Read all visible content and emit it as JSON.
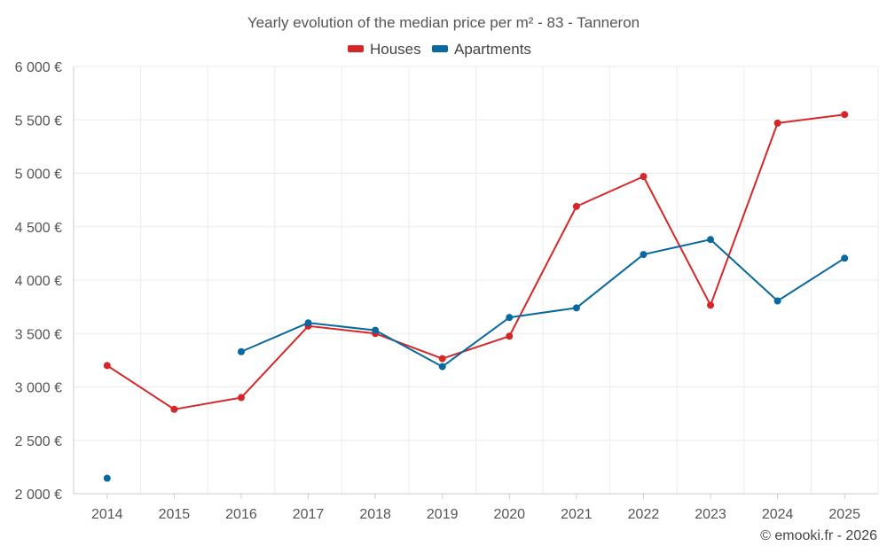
{
  "chart_data": {
    "type": "line",
    "title": "Yearly evolution of the median price per m² - 83 - Tanneron",
    "xlabel": "",
    "ylabel": "",
    "categories": [
      "2014",
      "2015",
      "2016",
      "2017",
      "2018",
      "2019",
      "2020",
      "2021",
      "2022",
      "2023",
      "2024",
      "2025"
    ],
    "ylim": [
      2000,
      6000
    ],
    "yticks": [
      2000,
      2500,
      3000,
      3500,
      4000,
      4500,
      5000,
      5500,
      6000
    ],
    "ytick_labels": [
      "2 000 €",
      "2 500 €",
      "3 000 €",
      "3 500 €",
      "4 000 €",
      "4 500 €",
      "5 000 €",
      "5 500 €",
      "6 000 €"
    ],
    "grid": true,
    "legend_position": "top-center",
    "series": [
      {
        "name": "Houses",
        "color": "#d62728",
        "values": [
          3200,
          2790,
          2900,
          3570,
          3500,
          3265,
          3475,
          4690,
          4970,
          3765,
          5470,
          5550
        ]
      },
      {
        "name": "Apartments",
        "color": "#0868a0",
        "values": [
          2145,
          null,
          3330,
          3600,
          3530,
          3190,
          3650,
          3740,
          4240,
          4380,
          3805,
          4205
        ]
      }
    ],
    "credit": "© emooki.fr - 2026"
  }
}
